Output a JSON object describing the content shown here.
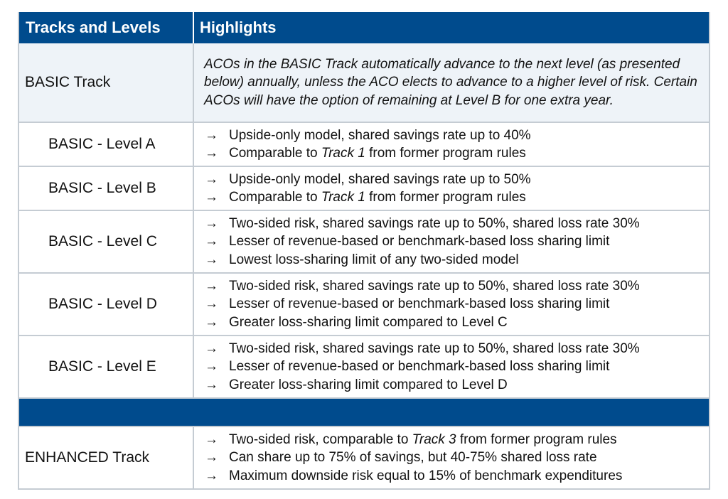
{
  "header": {
    "col1": "Tracks and Levels",
    "col2": "Highlights"
  },
  "basic_track": {
    "name": "BASIC Track",
    "description": "ACOs in the BASIC Track automatically advance to the next level (as presented below) annually, unless the ACO elects to advance to a higher level of risk. Certain ACOs will have the option of remaining at Level B for one extra year."
  },
  "arrow": "→",
  "levels": [
    {
      "name": "BASIC - Level A",
      "bullets": [
        {
          "pre": "Upside-only model, shared savings rate up to 40%",
          "em": "",
          "post": ""
        },
        {
          "pre": "Comparable to ",
          "em": "Track 1",
          "post": " from former program rules"
        }
      ]
    },
    {
      "name": "BASIC - Level B",
      "bullets": [
        {
          "pre": "Upside-only model, shared savings rate up to 50%",
          "em": "",
          "post": ""
        },
        {
          "pre": "Comparable to ",
          "em": "Track 1",
          "post": " from former program rules"
        }
      ]
    },
    {
      "name": "BASIC - Level C",
      "bullets": [
        {
          "pre": "Two-sided risk, shared savings rate up to 50%, shared loss rate 30%",
          "em": "",
          "post": ""
        },
        {
          "pre": "Lesser of revenue-based or benchmark-based loss sharing limit",
          "em": "",
          "post": ""
        },
        {
          "pre": "Lowest loss-sharing limit of any two-sided model",
          "em": "",
          "post": ""
        }
      ]
    },
    {
      "name": "BASIC - Level D",
      "bullets": [
        {
          "pre": "Two-sided risk, shared savings rate up to 50%, shared loss rate 30%",
          "em": "",
          "post": ""
        },
        {
          "pre": "Lesser of revenue-based or benchmark-based loss sharing limit",
          "em": "",
          "post": ""
        },
        {
          "pre": "Greater loss-sharing limit compared to Level C",
          "em": "",
          "post": ""
        }
      ]
    },
    {
      "name": "BASIC - Level E",
      "bullets": [
        {
          "pre": "Two-sided risk, shared savings rate up to 50%, shared loss rate 30%",
          "em": "",
          "post": ""
        },
        {
          "pre": "Lesser of revenue-based or benchmark-based loss sharing limit",
          "em": "",
          "post": ""
        },
        {
          "pre": "Greater loss-sharing limit compared to Level D",
          "em": "",
          "post": ""
        }
      ]
    }
  ],
  "enhanced_track": {
    "name": "ENHANCED Track",
    "bullets": [
      {
        "pre": "Two-sided risk, comparable to ",
        "em": "Track 3",
        "post": " from former program rules"
      },
      {
        "pre": "Can share up to 75% of savings, but 40-75% shared loss rate",
        "em": "",
        "post": ""
      },
      {
        "pre": "Maximum downside risk equal to 15% of benchmark expenditures",
        "em": "",
        "post": ""
      }
    ]
  },
  "colors": {
    "header_bg": "#004b8d",
    "shaded_bg": "#eef3f8",
    "border": "#c5ccd3"
  }
}
